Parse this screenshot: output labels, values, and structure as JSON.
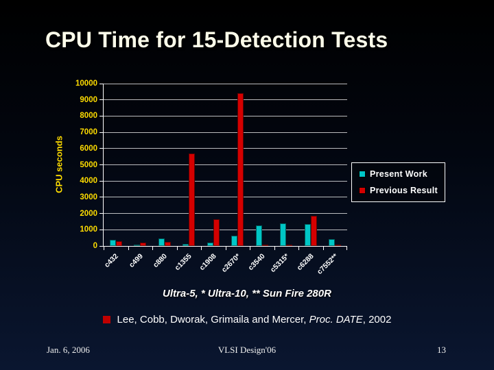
{
  "title": "CPU Time for 15-Detection Tests",
  "chart_data": {
    "type": "bar",
    "categories": [
      "c432",
      "c499",
      "c880",
      "c1355",
      "c1908",
      "c2670*",
      "c3540",
      "c5315*",
      "c6288",
      "c7552**"
    ],
    "series": [
      {
        "name": "Present Work",
        "color": "#00C6C6",
        "values": [
          400,
          80,
          450,
          120,
          200,
          650,
          1250,
          1400,
          1350,
          420
        ]
      },
      {
        "name": "Previous Result",
        "color": "#D40000",
        "values": [
          300,
          200,
          250,
          5700,
          1650,
          9400,
          40,
          60,
          1850,
          40
        ]
      }
    ],
    "title": "",
    "xlabel": "",
    "ylabel": "CPU seconds",
    "ylim": [
      0,
      10000
    ],
    "ytick_step": 1000,
    "grid": true,
    "legend_position": "right",
    "axis_label_color": "#FFDD00"
  },
  "caption": "Ultra-5, * Ultra-10, ** Sun Fire 280R",
  "reference": {
    "pre": "Lee, Cobb, Dworak, Grimaila and Mercer, ",
    "italic": "Proc. DATE",
    "post": ", 2002"
  },
  "footer": {
    "date": "Jan. 6, 2006",
    "center": "VLSI Design'06",
    "page": "13"
  }
}
